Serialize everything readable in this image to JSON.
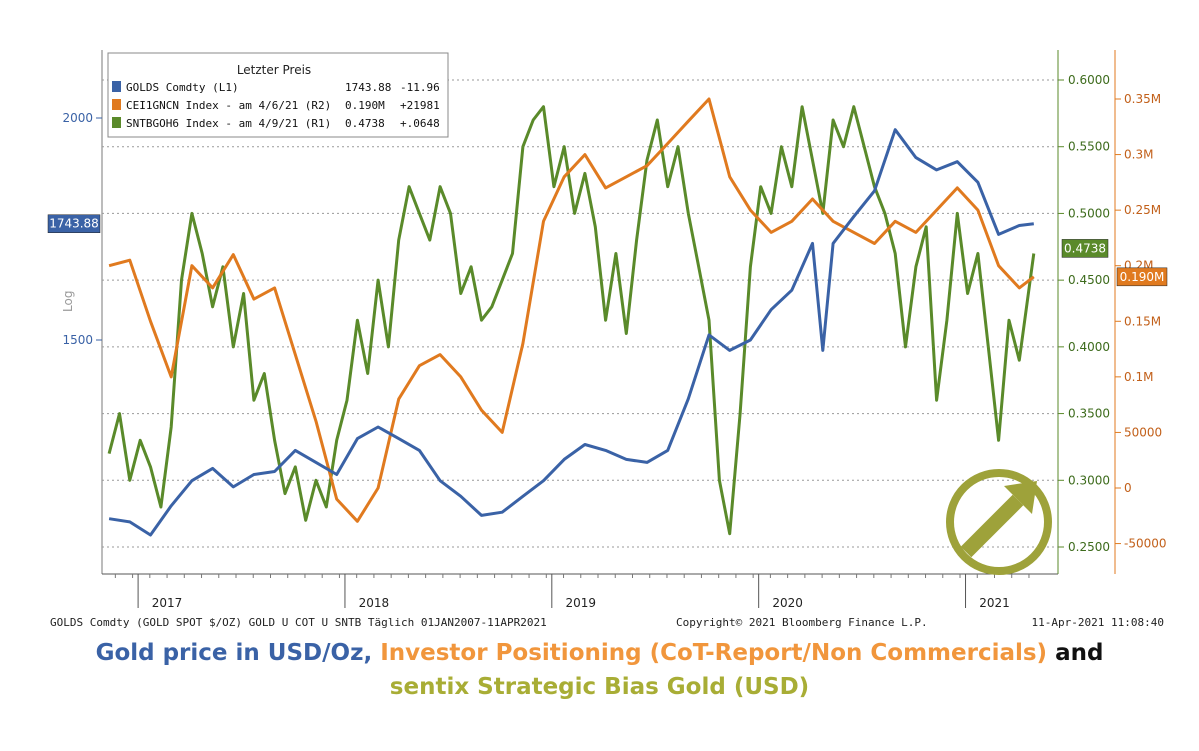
{
  "chart_data": {
    "type": "line",
    "legend": {
      "title": "Letzter Preis",
      "entries": [
        {
          "label": "GOLDS Comdty  (L1)",
          "value": "1743.88",
          "change": "-11.96",
          "color": "#3a62a6"
        },
        {
          "label": "CEI1GNCN Index - am 4/6/21  (R2)",
          "value": "0.190M",
          "change": "+21981",
          "color": "#e07a1f"
        },
        {
          "label": "SNTBGOH6 Index - am 4/9/21  (R1)",
          "value": "0.4738",
          "change": "+.0648",
          "color": "#5a8a2a"
        }
      ]
    },
    "left_axis": {
      "label": "Log",
      "ticks": [
        "2000",
        "1500"
      ],
      "last_value": "1743.88",
      "color": "#3a62a6"
    },
    "right_axis_1": {
      "ticks": [
        "0.6000",
        "0.5500",
        "0.5000",
        "0.4500",
        "0.4000",
        "0.3500",
        "0.3000",
        "0.2500"
      ],
      "last_value": "0.4738",
      "color": "#5a8a2a"
    },
    "right_axis_2": {
      "ticks": [
        "0.35M",
        "0.3M",
        "0.25M",
        "0.2M",
        "0.15M",
        "0.1M",
        "50000",
        "0",
        "-50000"
      ],
      "last_value": "0.190M",
      "color": "#e07a1f"
    },
    "x_axis": {
      "ticks": [
        "2017",
        "2018",
        "2019",
        "2020",
        "2021"
      ]
    },
    "footer_left": "GOLDS Comdty (GOLD SPOT $/OZ) GOLD U COT U SNTB  Täglich 01JAN2007-11APR2021",
    "footer_center": "Copyright© 2021 Bloomberg Finance L.P.",
    "footer_right": "11-Apr-2021 11:08:40",
    "series": [
      {
        "name": "GOLDS Comdty",
        "axis": "left",
        "color": "#3a62a6",
        "x": [
          2016.8,
          2016.9,
          2017.0,
          2017.1,
          2017.2,
          2017.3,
          2017.4,
          2017.5,
          2017.6,
          2017.7,
          2017.8,
          2017.9,
          2018.0,
          2018.1,
          2018.2,
          2018.3,
          2018.4,
          2018.5,
          2018.6,
          2018.7,
          2018.8,
          2018.9,
          2019.0,
          2019.1,
          2019.2,
          2019.3,
          2019.4,
          2019.5,
          2019.6,
          2019.7,
          2019.8,
          2019.9,
          2020.0,
          2020.1,
          2020.2,
          2020.25,
          2020.3,
          2020.4,
          2020.5,
          2020.6,
          2020.7,
          2020.8,
          2020.9,
          2021.0,
          2021.1,
          2021.2,
          2021.27
        ],
        "y": [
          1190,
          1185,
          1165,
          1210,
          1250,
          1270,
          1240,
          1260,
          1265,
          1300,
          1280,
          1260,
          1320,
          1340,
          1320,
          1300,
          1250,
          1225,
          1195,
          1200,
          1225,
          1250,
          1285,
          1310,
          1300,
          1285,
          1280,
          1300,
          1390,
          1510,
          1480,
          1500,
          1560,
          1600,
          1700,
          1480,
          1700,
          1760,
          1820,
          1970,
          1900,
          1870,
          1890,
          1840,
          1720,
          1740,
          1744
        ]
      },
      {
        "name": "CEI1GNCN Index",
        "axis": "right2",
        "color": "#e07a1f",
        "x": [
          2016.8,
          2016.9,
          2017.0,
          2017.1,
          2017.2,
          2017.3,
          2017.4,
          2017.5,
          2017.6,
          2017.7,
          2017.8,
          2017.9,
          2018.0,
          2018.1,
          2018.2,
          2018.3,
          2018.4,
          2018.5,
          2018.6,
          2018.7,
          2018.8,
          2018.9,
          2019.0,
          2019.1,
          2019.2,
          2019.3,
          2019.4,
          2019.5,
          2019.6,
          2019.7,
          2019.8,
          2019.9,
          2020.0,
          2020.1,
          2020.2,
          2020.3,
          2020.4,
          2020.5,
          2020.6,
          2020.7,
          2020.8,
          2020.9,
          2021.0,
          2021.1,
          2021.2,
          2021.27
        ],
        "y": [
          200000,
          205000,
          150000,
          100000,
          200000,
          180000,
          210000,
          170000,
          180000,
          120000,
          60000,
          -10000,
          -30000,
          0,
          80000,
          110000,
          120000,
          100000,
          70000,
          50000,
          130000,
          240000,
          280000,
          300000,
          270000,
          280000,
          290000,
          310000,
          330000,
          350000,
          280000,
          250000,
          230000,
          240000,
          260000,
          240000,
          230000,
          220000,
          240000,
          230000,
          250000,
          270000,
          250000,
          200000,
          180000,
          190000
        ]
      },
      {
        "name": "SNTBGOH6 Index",
        "axis": "right1",
        "color": "#5a8a2a",
        "x": [
          2016.8,
          2016.85,
          2016.9,
          2016.95,
          2017.0,
          2017.05,
          2017.1,
          2017.15,
          2017.2,
          2017.25,
          2017.3,
          2017.35,
          2017.4,
          2017.45,
          2017.5,
          2017.55,
          2017.6,
          2017.65,
          2017.7,
          2017.75,
          2017.8,
          2017.85,
          2017.9,
          2017.95,
          2018.0,
          2018.05,
          2018.1,
          2018.15,
          2018.2,
          2018.25,
          2018.3,
          2018.35,
          2018.4,
          2018.45,
          2018.5,
          2018.55,
          2018.6,
          2018.65,
          2018.7,
          2018.75,
          2018.8,
          2018.85,
          2018.9,
          2018.95,
          2019.0,
          2019.05,
          2019.1,
          2019.15,
          2019.2,
          2019.25,
          2019.3,
          2019.35,
          2019.4,
          2019.45,
          2019.5,
          2019.55,
          2019.6,
          2019.65,
          2019.7,
          2019.75,
          2019.8,
          2019.85,
          2019.9,
          2019.95,
          2020.0,
          2020.05,
          2020.1,
          2020.15,
          2020.2,
          2020.25,
          2020.3,
          2020.35,
          2020.4,
          2020.45,
          2020.5,
          2020.55,
          2020.6,
          2020.65,
          2020.7,
          2020.75,
          2020.8,
          2020.85,
          2020.9,
          2020.95,
          2021.0,
          2021.05,
          2021.1,
          2021.15,
          2021.2,
          2021.27
        ],
        "y": [
          0.32,
          0.35,
          0.3,
          0.33,
          0.31,
          0.28,
          0.34,
          0.45,
          0.5,
          0.47,
          0.43,
          0.46,
          0.4,
          0.44,
          0.36,
          0.38,
          0.33,
          0.29,
          0.31,
          0.27,
          0.3,
          0.28,
          0.33,
          0.36,
          0.42,
          0.38,
          0.45,
          0.4,
          0.48,
          0.52,
          0.5,
          0.48,
          0.52,
          0.5,
          0.44,
          0.46,
          0.42,
          0.43,
          0.45,
          0.47,
          0.55,
          0.57,
          0.58,
          0.52,
          0.55,
          0.5,
          0.53,
          0.49,
          0.42,
          0.47,
          0.41,
          0.48,
          0.54,
          0.57,
          0.52,
          0.55,
          0.5,
          0.46,
          0.42,
          0.3,
          0.26,
          0.35,
          0.46,
          0.52,
          0.5,
          0.55,
          0.52,
          0.58,
          0.54,
          0.5,
          0.57,
          0.55,
          0.58,
          0.55,
          0.52,
          0.5,
          0.47,
          0.4,
          0.46,
          0.49,
          0.36,
          0.42,
          0.5,
          0.44,
          0.47,
          0.4,
          0.33,
          0.42,
          0.39,
          0.47
        ]
      }
    ]
  },
  "caption": {
    "part1": "Gold price in USD/Oz,",
    "part2": "Investor Positioning (CoT-Report/Non Commercials)",
    "part3": "and",
    "part4": "sentix Strategic Bias Gold (USD)"
  },
  "arrow_badge": {
    "icon": "up-right-arrow-icon",
    "color": "#9ea23a"
  }
}
